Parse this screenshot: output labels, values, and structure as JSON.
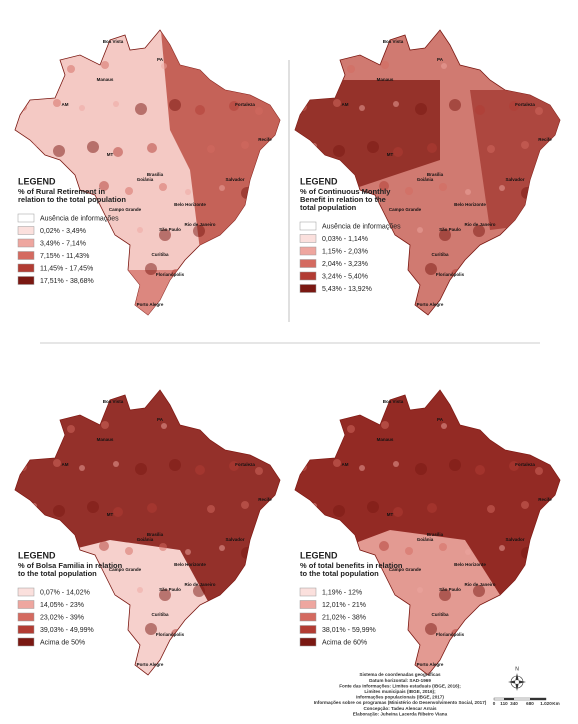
{
  "maps": [
    {
      "legend_heading": "LEGEND",
      "legend_title": [
        "% of Rural Retirement in",
        "relation to the total population"
      ],
      "classes": [
        "Ausência de informações",
        "0,02% - 3,49%",
        "3,49% - 7,14%",
        "7,15% - 11,43%",
        "11,45% - 17,45%",
        "17,51% - 38,68%"
      ]
    },
    {
      "legend_heading": "LEGEND",
      "legend_title": [
        "% of Continuous Monthly",
        "Benefit in relation to the",
        "total population"
      ],
      "classes": [
        "Ausência de informações",
        "0,03% - 1,14%",
        "1,15% - 2,03%",
        "2,04% - 3,23%",
        "3,24% - 5,40%",
        "5,43% - 13,92%"
      ]
    },
    {
      "legend_heading": "LEGEND",
      "legend_title": [
        "% of Bolsa Familia in relation",
        "to the total population"
      ],
      "classes": [
        "0,07% - 14,02%",
        "14,05% - 23%",
        "23,02% - 39%",
        "39,03% - 49,99%",
        "Acima de 50%"
      ]
    },
    {
      "legend_heading": "LEGEND",
      "legend_title": [
        "% of total benefits in relation",
        "to the total population"
      ],
      "classes": [
        "1,19% - 12%",
        "12,01% - 21%",
        "21,02% - 38%",
        "38,01% - 59,99%",
        "Acima de 60%"
      ]
    }
  ],
  "map_labels": [
    "Boa Vista",
    "Manaus",
    "AM",
    "PA",
    "MT",
    "Brasília",
    "Goiânia",
    "Campo Grande",
    "Belo Horizonte",
    "São Paulo",
    "Rio de Janeiro",
    "Curitiba",
    "Florianópolis",
    "Porto Alegre",
    "Salvador",
    "Recife",
    "Fortaleza"
  ],
  "footer": [
    "Sistema de coordenadas geográficas",
    "Datum horizontal: SAD-1969",
    "Fonte das informações: Limites estaduais (IBGE, 2016);",
    "Limites municipais (IBGE, 2016);",
    "Informações populacionais (IBGE, 2017)",
    "Informações sobre os programas (Ministério do Desenvolvimento Social, 2017)",
    "Concepção: Tadeu Alencar Arrais",
    "Elaboração: Juheina Lacerda Ribeiro Viana"
  ],
  "compass": "N",
  "scale_labels": [
    "0",
    "110",
    "340",
    "680",
    "1.020",
    "Km"
  ]
}
